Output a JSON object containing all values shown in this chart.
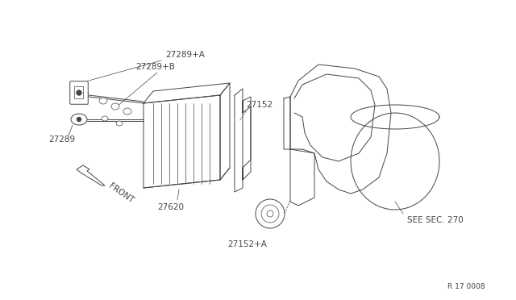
{
  "bg_color": "#ffffff",
  "line_color": "#444444",
  "text_color": "#444444",
  "diagram_id": "R 17 0008",
  "label_27289A": "27289+A",
  "label_27289": "27289",
  "label_27289B": "27289+B",
  "label_27152": "27152",
  "label_27620": "27620",
  "label_27152A": "27152+A",
  "label_see": "SEE SEC. 270",
  "label_front": "FRONT"
}
